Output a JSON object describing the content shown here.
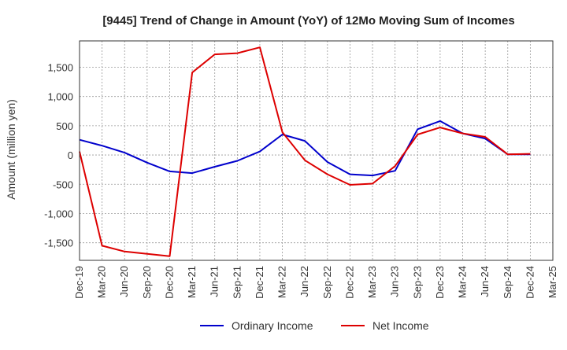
{
  "chart_data": {
    "type": "line",
    "title": "[9445]  Trend of Change in Amount (YoY) of 12Mo Moving Sum of Incomes",
    "xlabel": "",
    "ylabel": "Amount (million yen)",
    "categories": [
      "Dec-19",
      "Mar-20",
      "Jun-20",
      "Sep-20",
      "Dec-20",
      "Mar-21",
      "Jun-21",
      "Sep-21",
      "Dec-21",
      "Mar-22",
      "Jun-22",
      "Sep-22",
      "Dec-22",
      "Mar-23",
      "Jun-23",
      "Sep-23",
      "Dec-23",
      "Mar-24",
      "Jun-24",
      "Sep-24",
      "Dec-24",
      "Mar-25"
    ],
    "ylim": [
      -1800,
      1950
    ],
    "yticks": [
      -1500,
      -1000,
      -500,
      0,
      500,
      1000,
      1500
    ],
    "ytick_labels": [
      "-1,500",
      "-1,000",
      "-500",
      "0",
      "500",
      "1,000",
      "1,500"
    ],
    "grid": true,
    "legend_position": "bottom",
    "series": [
      {
        "name": "Ordinary Income",
        "color": "#0000cc",
        "values": [
          260,
          160,
          40,
          -130,
          -280,
          -310,
          -200,
          -100,
          60,
          350,
          240,
          -120,
          -330,
          -350,
          -270,
          440,
          580,
          370,
          280,
          10,
          10,
          null
        ]
      },
      {
        "name": "Net Income",
        "color": "#dd0000",
        "values": [
          60,
          -1550,
          -1650,
          -1690,
          -1730,
          1410,
          1720,
          1740,
          1840,
          390,
          -90,
          -330,
          -510,
          -490,
          -190,
          350,
          470,
          370,
          310,
          10,
          20,
          null
        ]
      }
    ]
  }
}
